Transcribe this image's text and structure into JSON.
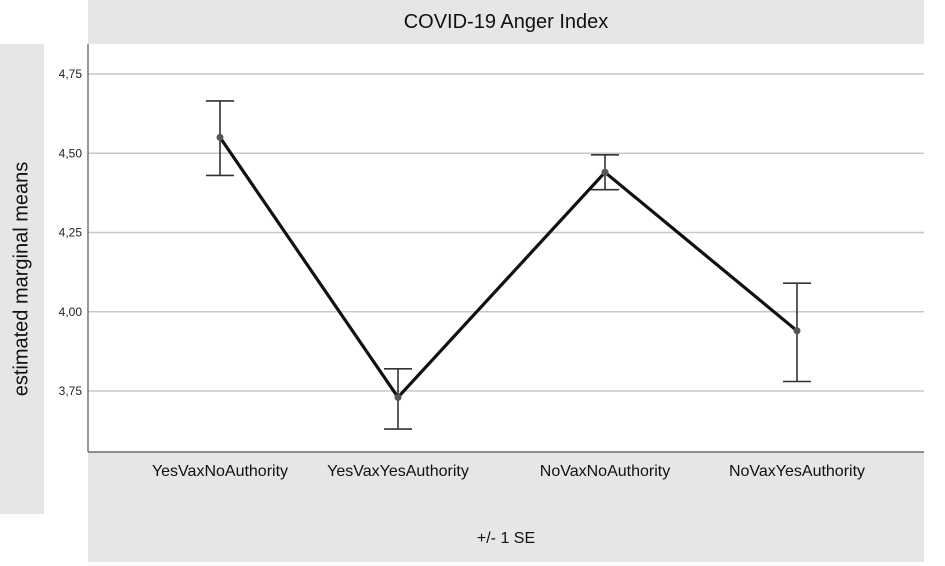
{
  "chart_data": {
    "type": "line",
    "title": "COVID-19 Anger Index",
    "xlabel": "+/- 1 SE",
    "ylabel": "estimated marginal means",
    "categories": [
      "YesVaxNoAuthority",
      "YesVaxYesAuthority",
      "NoVaxNoAuthority",
      "NoVaxYesAuthority"
    ],
    "values": [
      4.55,
      3.73,
      4.44,
      3.94
    ],
    "error_upper": [
      4.665,
      3.82,
      4.495,
      4.09
    ],
    "error_lower": [
      4.43,
      3.63,
      4.385,
      3.78
    ],
    "yticks": [
      "4,75",
      "4,50",
      "4,25",
      "4,00",
      "3,75"
    ],
    "ylim": [
      3.56,
      4.87
    ],
    "grid": true,
    "colors": {
      "line": "#111111",
      "error_bar": "#333333",
      "grid": "#c8c8c8",
      "panel": "#e6e6e6"
    }
  }
}
